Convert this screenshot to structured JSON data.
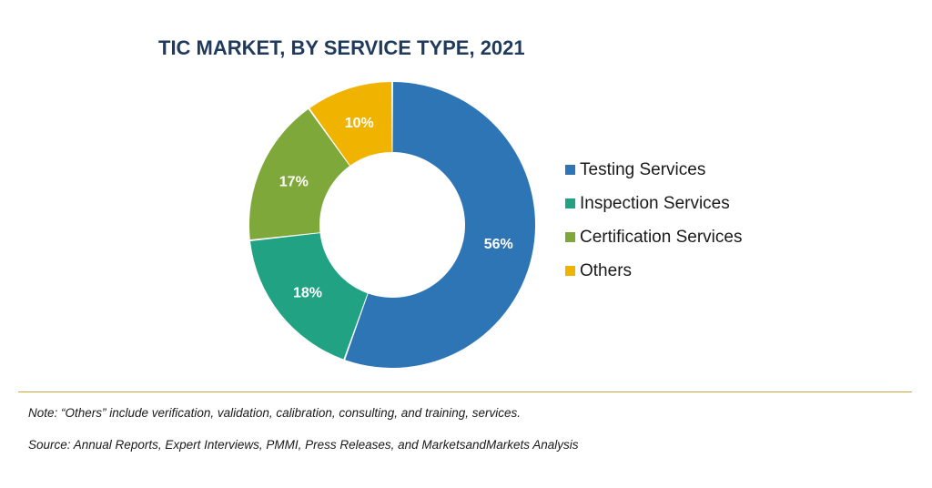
{
  "chart_data": {
    "type": "pie",
    "title": "TIC MARKET, BY SERVICE TYPE, 2021",
    "legend_position": "right",
    "donut": true,
    "slices": [
      {
        "name": "Testing Services",
        "value": 56,
        "label": "56%",
        "color": "#2e75b6"
      },
      {
        "name": "Inspection Services",
        "value": 18,
        "label": "18%",
        "color": "#21a383"
      },
      {
        "name": "Certification Services",
        "value": 17,
        "label": "17%",
        "color": "#7fa83a"
      },
      {
        "name": "Others",
        "value": 10,
        "label": "10%",
        "color": "#f0b400"
      }
    ]
  },
  "footer": {
    "note": "Note: “Others” include verification, validation, calibration, consulting, and training, services.",
    "source": "Source: Annual Reports, Expert Interviews, PMMI, Press Releases, and MarketsandMarkets Analysis"
  },
  "colors": {
    "title": "#1f3a5c",
    "rule": "#c9a640"
  }
}
